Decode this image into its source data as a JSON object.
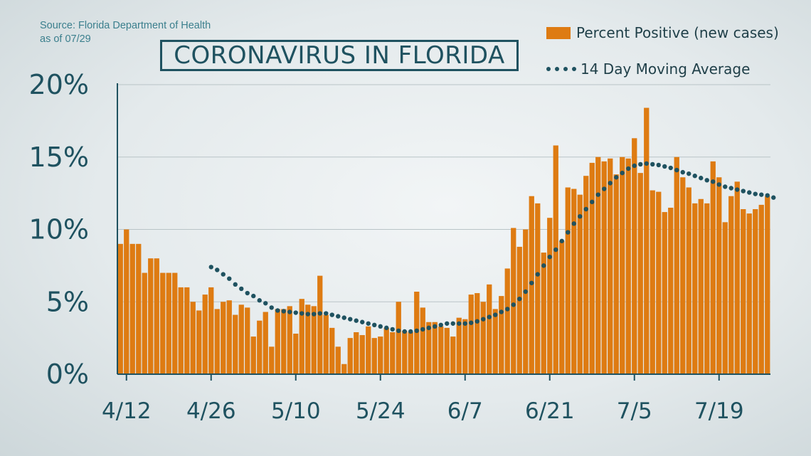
{
  "source": {
    "line1": "Source: Florida Department of Health",
    "line2": "as of 07/29"
  },
  "chart_data": {
    "type": "bar",
    "title": "CORONAVIRUS IN FLORIDA",
    "xlabel": "",
    "ylabel": "",
    "ylim": [
      0,
      20
    ],
    "y_ticks": [
      "0%",
      "5%",
      "10%",
      "15%",
      "20%"
    ],
    "x_tick_labels": [
      "4/12",
      "4/26",
      "5/10",
      "5/24",
      "6/7",
      "6/21",
      "7/5",
      "7/19"
    ],
    "x_tick_index": [
      1,
      15,
      29,
      43,
      57,
      71,
      85,
      99
    ],
    "grid": true,
    "legend": "top-right",
    "colors": {
      "bars": "#de7b12",
      "average": "#1f5260",
      "axis": "#1f5260"
    },
    "series": [
      {
        "name": "Percent Positive (new cases)",
        "type": "bar",
        "values": [
          9.0,
          10.0,
          9.0,
          9.0,
          7.0,
          8.0,
          8.0,
          7.0,
          7.0,
          7.0,
          6.0,
          6.0,
          5.0,
          4.4,
          5.5,
          6.0,
          4.5,
          5.0,
          5.1,
          4.1,
          4.8,
          4.6,
          2.6,
          3.7,
          4.3,
          1.9,
          4.5,
          4.5,
          4.7,
          2.8,
          5.2,
          4.8,
          4.7,
          6.8,
          4.1,
          3.2,
          1.9,
          0.7,
          2.5,
          2.9,
          2.7,
          3.3,
          2.5,
          2.6,
          3.2,
          2.9,
          5.0,
          3.0,
          2.9,
          5.7,
          4.6,
          3.6,
          3.6,
          3.3,
          3.2,
          2.6,
          3.9,
          3.8,
          5.5,
          5.6,
          5.0,
          6.2,
          4.5,
          5.4,
          7.3,
          10.1,
          8.8,
          10.0,
          12.3,
          11.8,
          8.4,
          10.8,
          15.8,
          9.2,
          12.9,
          12.8,
          12.4,
          13.7,
          14.6,
          15.0,
          14.7,
          14.9,
          13.8,
          15.0,
          14.9,
          16.3,
          13.9,
          18.4,
          12.7,
          12.6,
          11.2,
          11.5,
          15.0,
          13.6,
          12.9,
          11.8,
          12.1,
          11.8,
          14.7,
          13.6,
          10.5,
          12.3,
          13.3,
          11.4,
          11.1,
          11.4,
          11.7,
          12.3
        ]
      },
      {
        "name": "14 Day Moving Average",
        "type": "line",
        "style": "dotted",
        "x_index": [
          15,
          16,
          17,
          18,
          19,
          20,
          21,
          22,
          23,
          24,
          25,
          26,
          27,
          28,
          29,
          30,
          31,
          32,
          33,
          34,
          35,
          36,
          37,
          38,
          39,
          40,
          41,
          42,
          43,
          44,
          45,
          46,
          47,
          48,
          49,
          50,
          51,
          52,
          53,
          54,
          55,
          56,
          57,
          58,
          59,
          60,
          61,
          62,
          63,
          64,
          65,
          66,
          67,
          68,
          69,
          70,
          71,
          72,
          73,
          74,
          75,
          76,
          77,
          78,
          79,
          80,
          81,
          82,
          83,
          84,
          85,
          86,
          87,
          88,
          89,
          90,
          91,
          92,
          93,
          94,
          95,
          96,
          97,
          98,
          99,
          100,
          101,
          102,
          103,
          104,
          105,
          106,
          107,
          108
        ],
        "values": [
          7.4,
          7.2,
          6.9,
          6.6,
          6.2,
          5.9,
          5.6,
          5.4,
          5.1,
          4.9,
          4.6,
          4.4,
          4.35,
          4.3,
          4.25,
          4.2,
          4.15,
          4.15,
          4.2,
          4.2,
          4.1,
          4.0,
          3.9,
          3.8,
          3.7,
          3.6,
          3.5,
          3.4,
          3.3,
          3.2,
          3.1,
          3.0,
          2.95,
          2.95,
          3.0,
          3.1,
          3.2,
          3.3,
          3.4,
          3.5,
          3.5,
          3.5,
          3.5,
          3.55,
          3.65,
          3.8,
          3.95,
          4.1,
          4.3,
          4.5,
          4.8,
          5.2,
          5.7,
          6.3,
          6.9,
          7.5,
          8.1,
          8.6,
          9.2,
          9.8,
          10.4,
          10.9,
          11.4,
          11.9,
          12.4,
          12.8,
          13.2,
          13.6,
          13.9,
          14.2,
          14.4,
          14.5,
          14.55,
          14.5,
          14.45,
          14.35,
          14.25,
          14.1,
          13.95,
          13.85,
          13.7,
          13.55,
          13.4,
          13.3,
          13.1,
          12.95,
          12.85,
          12.75,
          12.65,
          12.55,
          12.45,
          12.4,
          12.35,
          12.2
        ]
      }
    ]
  }
}
